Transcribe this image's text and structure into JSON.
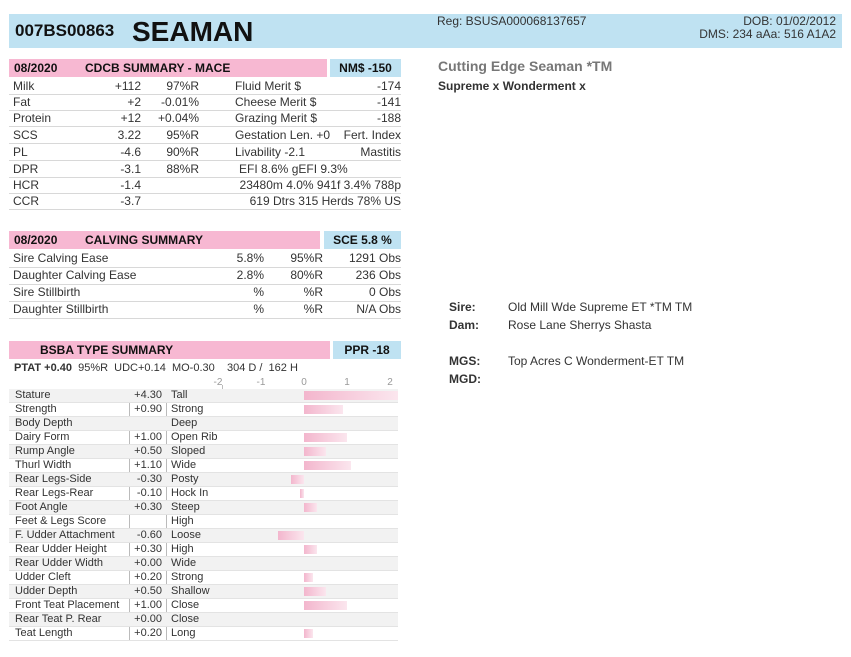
{
  "header": {
    "code": "007BS00863",
    "name": "SEAMAN",
    "reg": "Reg: BSUSA000068137657",
    "dob": "DOB: 01/02/2012",
    "dms": "DMS: 234  aAa: 516    A1A2"
  },
  "right": {
    "title": "Cutting Edge Seaman *TM",
    "cross": "Supreme x Wonderment x",
    "sire_label": "Sire:",
    "sire": "Old Mill Wde Supreme ET *TM TM",
    "dam_label": "Dam:",
    "dam": "Rose Lane Sherrys Shasta",
    "mgs_label": "MGS:",
    "mgs": "Top Acres C Wonderment-ET TM",
    "mgd_label": "MGD:"
  },
  "cdcb": {
    "date": "08/2020",
    "title": "CDCB SUMMARY - MACE",
    "badge": "NM$ -150",
    "rows": [
      {
        "a": "Milk",
        "b": "+112",
        "c": "97%R",
        "d": "Fluid Merit $",
        "e": "-174"
      },
      {
        "a": "Fat",
        "b": "+2",
        "c": "-0.01%",
        "d": "Cheese Merit $",
        "e": "-141"
      },
      {
        "a": "Protein",
        "b": "+12",
        "c": "+0.04%",
        "d": "Grazing Merit $",
        "e": "-188"
      },
      {
        "a": "SCS",
        "b": "3.22",
        "c": "95%R",
        "d": "Gestation Len. +0",
        "e": "Fert. Index"
      },
      {
        "a": "PL",
        "b": "-4.6",
        "c": "90%R",
        "d": "Livability  -2.1",
        "e": "Mastitis"
      },
      {
        "a": "DPR",
        "b": "-3.1",
        "c": "88%R",
        "d": "EFI  8.6%  gEFI  9.3%",
        "e": ""
      },
      {
        "a": "HCR",
        "b": "-1.4",
        "c": "",
        "d": "23480m  4.0%  941f  3.4%  788p",
        "e": ""
      },
      {
        "a": "CCR",
        "b": "-3.7",
        "c": "",
        "d": "619 Dtrs  315 Herds  78% US",
        "e": ""
      }
    ]
  },
  "calving": {
    "date": "08/2020",
    "title": "CALVING SUMMARY",
    "badge": "SCE 5.8 %",
    "rows": [
      {
        "a": "Sire Calving Ease",
        "b": "5.8%",
        "c": "95%R",
        "d": "1291 Obs"
      },
      {
        "a": "Daughter Calving Ease",
        "b": "2.8%",
        "c": "80%R",
        "d": "236 Obs"
      },
      {
        "a": "Sire Stillbirth",
        "b": "%",
        "c": "%R",
        "d": "0 Obs"
      },
      {
        "a": "Daughter Stillbirth",
        "b": "%",
        "c": "%R",
        "d": "N/A Obs"
      }
    ]
  },
  "type": {
    "title": "BSBA TYPE SUMMARY",
    "badge": "PPR -18",
    "summary": "PTAT +0.40  95%R  UDC+0.14  MO-0.30    304 D /  162 H",
    "summary_b": "PTAT +0.40",
    "summary_rest": "  95%R  UDC+0.14  MO-0.30    304 D /  162 H",
    "axis": [
      "-2",
      "-1",
      "0",
      "1",
      "2"
    ],
    "traits": [
      {
        "name": "Stature",
        "value": "+4.30",
        "desc": "Tall",
        "v": 4.3
      },
      {
        "name": "Strength",
        "value": "+0.90",
        "desc": "Strong",
        "v": 0.9
      },
      {
        "name": "Body Depth",
        "value": "",
        "desc": "Deep",
        "v": 0
      },
      {
        "name": "Dairy Form",
        "value": "+1.00",
        "desc": "Open Rib",
        "v": 1.0
      },
      {
        "name": "Rump Angle",
        "value": "+0.50",
        "desc": "Sloped",
        "v": 0.5
      },
      {
        "name": "Thurl Width",
        "value": "+1.10",
        "desc": "Wide",
        "v": 1.1
      },
      {
        "name": "Rear Legs-Side",
        "value": "-0.30",
        "desc": "Posty",
        "v": -0.3
      },
      {
        "name": "Rear Legs-Rear",
        "value": "-0.10",
        "desc": "Hock In",
        "v": -0.1
      },
      {
        "name": "Foot Angle",
        "value": "+0.30",
        "desc": "Steep",
        "v": 0.3
      },
      {
        "name": "Feet & Legs Score",
        "value": "",
        "desc": "High",
        "v": 0
      },
      {
        "name": "F. Udder Attachment",
        "value": "-0.60",
        "desc": "Loose",
        "v": -0.6
      },
      {
        "name": "Rear Udder Height",
        "value": "+0.30",
        "desc": "High",
        "v": 0.3
      },
      {
        "name": "Rear Udder Width",
        "value": "+0.00",
        "desc": "Wide",
        "v": 0.0
      },
      {
        "name": "Udder Cleft",
        "value": "+0.20",
        "desc": "Strong",
        "v": 0.2
      },
      {
        "name": "Udder Depth",
        "value": "+0.50",
        "desc": "Shallow",
        "v": 0.5
      },
      {
        "name": "Front Teat Placement",
        "value": "+1.00",
        "desc": "Close",
        "v": 1.0
      },
      {
        "name": "Rear Teat P. Rear",
        "value": "+0.00",
        "desc": "Close",
        "v": 0.0
      },
      {
        "name": "Teat Length",
        "value": "+0.20",
        "desc": "Long",
        "v": 0.2
      }
    ]
  }
}
